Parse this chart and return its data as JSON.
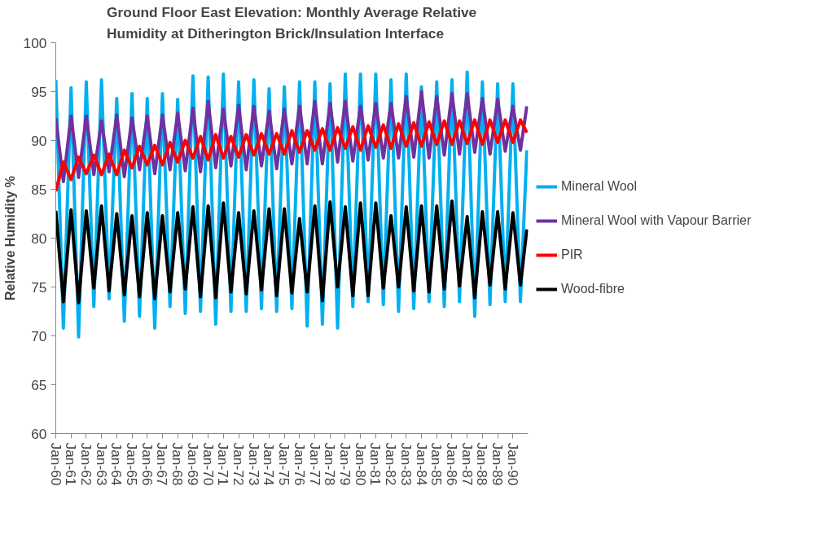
{
  "chart_data": {
    "type": "line",
    "title": "Ground Floor East Elevation: Monthly Average Relative Humidity at Ditherington Brick/Insulation Interface",
    "ylabel": "Relative Humidity %",
    "x": [
      "1960-01",
      "1960-07",
      "1961-01",
      "1961-07",
      "1962-01",
      "1962-07",
      "1963-01",
      "1963-07",
      "1964-01",
      "1964-07",
      "1965-01",
      "1965-07",
      "1966-01",
      "1966-07",
      "1967-01",
      "1967-07",
      "1968-01",
      "1968-07",
      "1969-01",
      "1969-07",
      "1970-01",
      "1970-07",
      "1971-01",
      "1971-07",
      "1972-01",
      "1972-07",
      "1973-01",
      "1973-07",
      "1974-01",
      "1974-07",
      "1975-01",
      "1975-07",
      "1976-01",
      "1976-07",
      "1977-01",
      "1977-07",
      "1978-01",
      "1978-07",
      "1979-01",
      "1979-07",
      "1980-01",
      "1980-07",
      "1981-01",
      "1981-07",
      "1982-01",
      "1982-07",
      "1983-01",
      "1983-07",
      "1984-01",
      "1984-07",
      "1985-01",
      "1985-07",
      "1986-01",
      "1986-07",
      "1987-01",
      "1987-07",
      "1988-01",
      "1988-07",
      "1989-01",
      "1989-07",
      "1990-01",
      "1990-07",
      "1990-12"
    ],
    "series": [
      {
        "name": "Mineral Wool",
        "color": "#00b0f0",
        "values": [
          96.2,
          70.8,
          95.4,
          69.9,
          96.0,
          73.0,
          96.2,
          73.8,
          94.3,
          71.5,
          94.8,
          72.0,
          94.3,
          70.8,
          94.8,
          73.0,
          94.2,
          72.3,
          96.6,
          72.5,
          96.5,
          71.2,
          96.8,
          72.5,
          96.0,
          72.5,
          96.2,
          72.8,
          95.3,
          72.5,
          95.5,
          72.8,
          96.0,
          71.0,
          96.0,
          71.2,
          95.8,
          70.8,
          96.8,
          73.0,
          96.8,
          73.5,
          96.8,
          73.2,
          96.2,
          72.5,
          96.8,
          72.8,
          95.5,
          73.5,
          96.0,
          73.0,
          96.2,
          73.5,
          97.0,
          72.0,
          96.0,
          73.2,
          95.8,
          73.5,
          95.8,
          73.5,
          89.0
        ]
      },
      {
        "name": "Mineral Wool with Vapour Barrier",
        "color": "#7030a0",
        "values": [
          92.3,
          85.8,
          92.5,
          86.2,
          92.5,
          86.5,
          92.0,
          86.8,
          92.6,
          86.3,
          92.3,
          87.0,
          92.5,
          86.6,
          92.6,
          87.0,
          92.8,
          86.9,
          93.3,
          86.8,
          94.0,
          87.2,
          93.2,
          87.4,
          93.6,
          87.0,
          93.5,
          87.4,
          93.0,
          87.1,
          93.2,
          87.6,
          93.5,
          87.6,
          94.0,
          87.6,
          93.8,
          87.8,
          94.0,
          87.9,
          93.5,
          88.0,
          93.8,
          88.2,
          93.8,
          88.2,
          94.5,
          88.3,
          95.0,
          88.2,
          94.5,
          88.5,
          94.8,
          88.6,
          94.8,
          88.8,
          94.3,
          88.6,
          94.2,
          88.9,
          93.5,
          89.0,
          93.5
        ]
      },
      {
        "name": "PIR",
        "color": "#ff0000",
        "values": [
          84.8,
          87.8,
          86.0,
          88.3,
          86.6,
          88.5,
          86.5,
          88.6,
          86.5,
          89.0,
          87.2,
          89.4,
          87.5,
          89.5,
          87.5,
          89.8,
          87.8,
          90.0,
          88.2,
          90.4,
          88.0,
          90.6,
          88.2,
          90.4,
          88.3,
          90.6,
          88.5,
          90.7,
          88.6,
          90.7,
          88.6,
          91.0,
          88.8,
          91.0,
          89.0,
          91.2,
          89.0,
          91.3,
          89.2,
          91.4,
          89.0,
          91.5,
          89.3,
          91.6,
          89.2,
          91.7,
          89.4,
          91.8,
          89.4,
          91.9,
          89.6,
          92.0,
          89.6,
          92.0,
          89.7,
          92.1,
          89.6,
          92.1,
          89.8,
          92.1,
          89.8,
          92.1,
          90.8
        ]
      },
      {
        "name": "Wood-fibre",
        "color": "#000000",
        "values": [
          82.8,
          73.5,
          82.9,
          73.4,
          82.8,
          74.9,
          83.3,
          74.6,
          82.5,
          74.2,
          82.3,
          74.0,
          82.6,
          73.8,
          82.3,
          74.5,
          82.6,
          74.8,
          83.2,
          74.0,
          83.3,
          73.9,
          83.6,
          74.5,
          82.6,
          74.3,
          82.8,
          74.7,
          83.0,
          74.1,
          83.0,
          74.4,
          82.0,
          74.5,
          83.3,
          73.6,
          83.7,
          75.0,
          83.2,
          74.1,
          83.6,
          74.1,
          83.6,
          74.9,
          82.3,
          75.0,
          83.2,
          74.6,
          83.3,
          74.5,
          83.3,
          74.8,
          83.8,
          75.1,
          82.2,
          73.9,
          82.7,
          75.2,
          82.7,
          74.8,
          82.6,
          75.2,
          80.9
        ]
      }
    ],
    "xlim": [
      "1960-01",
      "1991-01"
    ],
    "xticks": [
      {
        "value": "1960-01",
        "label": "Jan-60"
      },
      {
        "value": "1961-01",
        "label": "Jan-61"
      },
      {
        "value": "1962-01",
        "label": "Jan-62"
      },
      {
        "value": "1963-01",
        "label": "Jan-63"
      },
      {
        "value": "1964-01",
        "label": "Jan-64"
      },
      {
        "value": "1965-01",
        "label": "Jan-65"
      },
      {
        "value": "1966-01",
        "label": "Jan-66"
      },
      {
        "value": "1967-01",
        "label": "Jan-67"
      },
      {
        "value": "1968-01",
        "label": "Jan-68"
      },
      {
        "value": "1969-01",
        "label": "Jan-69"
      },
      {
        "value": "1970-01",
        "label": "Jan-70"
      },
      {
        "value": "1971-01",
        "label": "Jan-71"
      },
      {
        "value": "1972-01",
        "label": "Jan-72"
      },
      {
        "value": "1973-01",
        "label": "Jan-73"
      },
      {
        "value": "1974-01",
        "label": "Jan-74"
      },
      {
        "value": "1975-01",
        "label": "Jan-75"
      },
      {
        "value": "1976-01",
        "label": "Jan-76"
      },
      {
        "value": "1977-01",
        "label": "Jan-77"
      },
      {
        "value": "1978-01",
        "label": "Jan-78"
      },
      {
        "value": "1979-01",
        "label": "Jan-79"
      },
      {
        "value": "1980-01",
        "label": "Jan-80"
      },
      {
        "value": "1981-01",
        "label": "Jan-81"
      },
      {
        "value": "1982-01",
        "label": "Jan-82"
      },
      {
        "value": "1983-01",
        "label": "Jan-83"
      },
      {
        "value": "1984-01",
        "label": "Jan-84"
      },
      {
        "value": "1985-01",
        "label": "Jan-85"
      },
      {
        "value": "1986-01",
        "label": "Jan-86"
      },
      {
        "value": "1987-01",
        "label": "Jan-87"
      },
      {
        "value": "1988-01",
        "label": "Jan-88"
      },
      {
        "value": "1989-01",
        "label": "Jan-89"
      },
      {
        "value": "1990-01",
        "label": "Jan-90"
      }
    ],
    "ylim": [
      60,
      100
    ],
    "yticks": [
      60,
      65,
      70,
      75,
      80,
      85,
      90,
      95,
      100
    ],
    "grid": false,
    "legend": "right",
    "marker": "none",
    "line_style": "solid"
  }
}
